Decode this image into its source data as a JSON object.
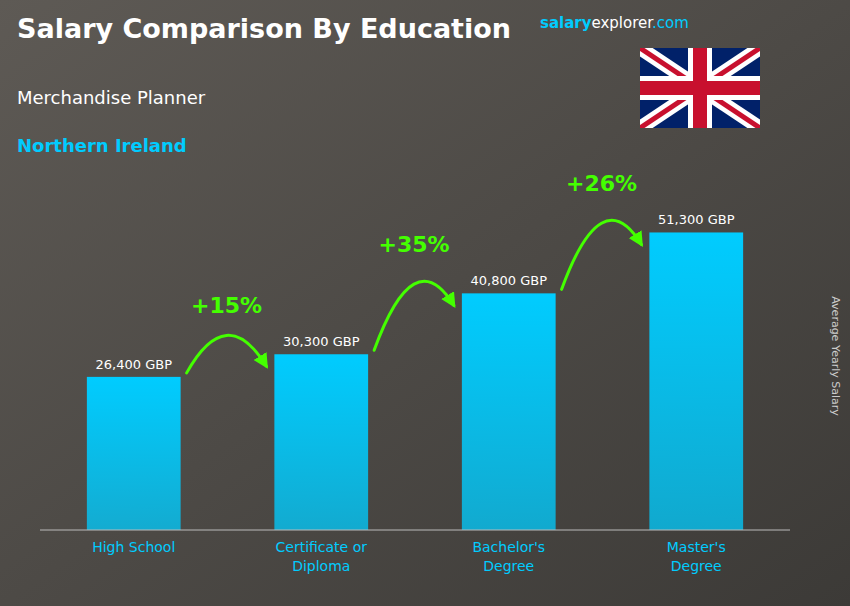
{
  "chart_data": {
    "type": "bar",
    "title": "Salary Comparison By Education",
    "subtitle": "Merchandise Planner",
    "location": "Northern Ireland",
    "ylabel": "Average Yearly Salary",
    "website": [
      "salary",
      "explorer",
      ".com"
    ],
    "categories": [
      "High School",
      "Certificate or\nDiploma",
      "Bachelor's\nDegree",
      "Master's\nDegree"
    ],
    "values": [
      26400,
      30300,
      40800,
      51300
    ],
    "value_labels": [
      "26,400 GBP",
      "30,300 GBP",
      "40,800 GBP",
      "51,300 GBP"
    ],
    "data_labels": true,
    "color": "#00ccff",
    "annotations": [
      {
        "text": "+15%",
        "color": "#44ff00"
      },
      {
        "text": "+35%",
        "color": "#44ff00"
      },
      {
        "text": "+26%",
        "color": "#44ff00"
      }
    ],
    "ylim": [
      0,
      60000
    ],
    "tick_labels": false,
    "grid": false
  }
}
